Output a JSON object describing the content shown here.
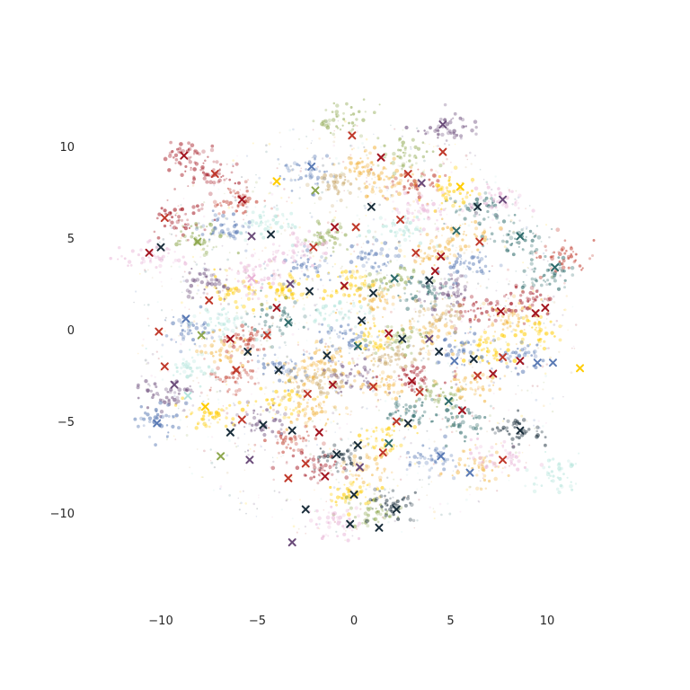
{
  "chart_data": {
    "type": "scatter",
    "title": "",
    "xlabel": "",
    "ylabel": "",
    "xlim": [
      -13,
      13
    ],
    "ylim": [
      -14,
      13
    ],
    "grid": false,
    "legend": "none",
    "x_ticks": [
      -10,
      -5,
      0,
      5,
      10
    ],
    "y_ticks": [
      10,
      5,
      0,
      -5,
      -10
    ],
    "x_tick_labels": [
      "−10",
      "−5",
      "0",
      "5",
      "10"
    ],
    "y_tick_labels": [
      "10",
      "5",
      "0",
      "−5",
      "−10"
    ],
    "palette": [
      "#a31621",
      "#c0392b",
      "#5b7bb5",
      "#ffcc00",
      "#f2b544",
      "#1a2e3b",
      "#2e6b6b",
      "#6b4c7a",
      "#8ea84f",
      "#e8b3d6",
      "#b5e5dc",
      "#c9a86b"
    ],
    "clusters": [
      {
        "x": -8.6,
        "y": 9.5,
        "color": 0
      },
      {
        "x": -7.2,
        "y": 8.5,
        "color": 0
      },
      {
        "x": -6.0,
        "y": 7.0,
        "color": 1
      },
      {
        "x": -9.0,
        "y": 6.0,
        "color": 0
      },
      {
        "x": -10.5,
        "y": 4.0,
        "color": 9
      },
      {
        "x": -8.0,
        "y": 5.0,
        "color": 8
      },
      {
        "x": -6.5,
        "y": 5.5,
        "color": 2
      },
      {
        "x": -5.8,
        "y": 2.0,
        "color": 3
      },
      {
        "x": -5.0,
        "y": 3.0,
        "color": 9
      },
      {
        "x": -7.5,
        "y": 2.5,
        "color": 7
      },
      {
        "x": -8.5,
        "y": 0.0,
        "color": 2
      },
      {
        "x": -6.5,
        "y": -1.0,
        "color": 4
      },
      {
        "x": -5.5,
        "y": -0.5,
        "color": 1
      },
      {
        "x": -4.0,
        "y": 0.5,
        "color": 6
      },
      {
        "x": -3.5,
        "y": 2.0,
        "color": 3
      },
      {
        "x": -2.5,
        "y": 3.5,
        "color": 2
      },
      {
        "x": -1.5,
        "y": 5.0,
        "color": 8
      },
      {
        "x": -2.5,
        "y": 8.5,
        "color": 2
      },
      {
        "x": -1.0,
        "y": 8.0,
        "color": 11
      },
      {
        "x": 0.5,
        "y": 9.0,
        "color": 4
      },
      {
        "x": 1.5,
        "y": 8.0,
        "color": 4
      },
      {
        "x": 2.5,
        "y": 9.5,
        "color": 8
      },
      {
        "x": 3.0,
        "y": 8.0,
        "color": 1
      },
      {
        "x": 5.0,
        "y": 7.5,
        "color": 3
      },
      {
        "x": 6.5,
        "y": 6.5,
        "color": 6
      },
      {
        "x": 7.5,
        "y": 7.0,
        "color": 9
      },
      {
        "x": 8.5,
        "y": 5.0,
        "color": 6
      },
      {
        "x": 5.5,
        "y": 5.0,
        "color": 4
      },
      {
        "x": 4.0,
        "y": 4.0,
        "color": 4
      },
      {
        "x": 2.5,
        "y": 5.5,
        "color": 10
      },
      {
        "x": 1.0,
        "y": 4.0,
        "color": 2
      },
      {
        "x": 0.0,
        "y": 2.5,
        "color": 3
      },
      {
        "x": 1.0,
        "y": 1.5,
        "color": 4
      },
      {
        "x": 2.0,
        "y": 2.5,
        "color": 8
      },
      {
        "x": 3.5,
        "y": 2.0,
        "color": 6
      },
      {
        "x": 5.0,
        "y": 2.0,
        "color": 7
      },
      {
        "x": 6.5,
        "y": 1.0,
        "color": 0
      },
      {
        "x": 8.0,
        "y": 0.5,
        "color": 4
      },
      {
        "x": 9.5,
        "y": 0.0,
        "color": 3
      },
      {
        "x": 9.0,
        "y": 1.5,
        "color": 0
      },
      {
        "x": 8.5,
        "y": -1.5,
        "color": 2
      },
      {
        "x": 7.0,
        "y": -1.0,
        "color": 3
      },
      {
        "x": 5.5,
        "y": -1.0,
        "color": 2
      },
      {
        "x": 4.0,
        "y": 0.0,
        "color": 4
      },
      {
        "x": 2.5,
        "y": -0.5,
        "color": 8
      },
      {
        "x": 1.0,
        "y": -0.5,
        "color": 3
      },
      {
        "x": -0.5,
        "y": -0.5,
        "color": 2
      },
      {
        "x": -1.5,
        "y": -1.5,
        "color": 4
      },
      {
        "x": -2.5,
        "y": -2.5,
        "color": 4
      },
      {
        "x": -4.0,
        "y": -2.0,
        "color": 2
      },
      {
        "x": -6.0,
        "y": -2.5,
        "color": 1
      },
      {
        "x": -8.5,
        "y": -2.0,
        "color": 10
      },
      {
        "x": -9.5,
        "y": -3.5,
        "color": 7
      },
      {
        "x": -10.0,
        "y": -5.0,
        "color": 2
      },
      {
        "x": -7.5,
        "y": -4.5,
        "color": 3
      },
      {
        "x": -5.0,
        "y": -5.0,
        "color": 7
      },
      {
        "x": -3.5,
        "y": -4.0,
        "color": 3
      },
      {
        "x": -2.0,
        "y": -4.5,
        "color": 4
      },
      {
        "x": -3.0,
        "y": -6.0,
        "color": 1
      },
      {
        "x": -2.0,
        "y": -7.5,
        "color": 0
      },
      {
        "x": -0.8,
        "y": -7.0,
        "color": 5
      },
      {
        "x": 0.5,
        "y": -7.5,
        "color": 4
      },
      {
        "x": 0.0,
        "y": -9.0,
        "color": 3
      },
      {
        "x": 1.0,
        "y": -10.0,
        "color": 8
      },
      {
        "x": 2.0,
        "y": -9.5,
        "color": 5
      },
      {
        "x": -1.0,
        "y": -10.5,
        "color": 9
      },
      {
        "x": 1.5,
        "y": -6.0,
        "color": 3
      },
      {
        "x": 3.0,
        "y": -4.5,
        "color": 6
      },
      {
        "x": 4.5,
        "y": -3.5,
        "color": 8
      },
      {
        "x": 5.5,
        "y": -5.0,
        "color": 6
      },
      {
        "x": 6.0,
        "y": -3.0,
        "color": 4
      },
      {
        "x": 3.0,
        "y": -2.5,
        "color": 0
      },
      {
        "x": 1.5,
        "y": -3.0,
        "color": 4
      },
      {
        "x": 0.0,
        "y": -2.5,
        "color": 7
      },
      {
        "x": 4.0,
        "y": -7.0,
        "color": 2
      },
      {
        "x": 6.5,
        "y": -7.5,
        "color": 4
      },
      {
        "x": 7.5,
        "y": -7.0,
        "color": 9
      },
      {
        "x": 10.5,
        "y": -8.0,
        "color": 10
      },
      {
        "x": 8.5,
        "y": -5.5,
        "color": 5
      },
      {
        "x": 10.0,
        "y": 3.0,
        "color": 6
      },
      {
        "x": 11.0,
        "y": 4.0,
        "color": 1
      },
      {
        "x": -0.5,
        "y": 11.5,
        "color": 8
      },
      {
        "x": 5.0,
        "y": 11.0,
        "color": 7
      },
      {
        "x": -3.0,
        "y": 4.5,
        "color": 9
      },
      {
        "x": -1.0,
        "y": 1.0,
        "color": 10
      },
      {
        "x": -4.5,
        "y": 6.0,
        "color": 10
      },
      {
        "x": 3.5,
        "y": 6.5,
        "color": 9
      },
      {
        "x": 6.0,
        "y": 3.5,
        "color": 2
      },
      {
        "x": -6.5,
        "y": 0.5,
        "color": 10
      },
      {
        "x": 2.0,
        "y": -1.5,
        "color": 11
      },
      {
        "x": -1.5,
        "y": -3.0,
        "color": 11
      },
      {
        "x": 4.5,
        "y": 1.0,
        "color": 11
      }
    ],
    "markers": [
      {
        "x": -8.8,
        "y": 9.5,
        "color": 0
      },
      {
        "x": -7.2,
        "y": 8.5,
        "color": 1
      },
      {
        "x": -5.8,
        "y": 7.1,
        "color": 0
      },
      {
        "x": -9.8,
        "y": 6.1,
        "color": 1
      },
      {
        "x": -10.6,
        "y": 4.2,
        "color": 0
      },
      {
        "x": -10.0,
        "y": 4.5,
        "color": 5
      },
      {
        "x": -8.1,
        "y": 4.8,
        "color": 8
      },
      {
        "x": -5.3,
        "y": 5.1,
        "color": 7
      },
      {
        "x": -4.3,
        "y": 5.2,
        "color": 5
      },
      {
        "x": -2.1,
        "y": 4.5,
        "color": 1
      },
      {
        "x": -1.0,
        "y": 5.6,
        "color": 0
      },
      {
        "x": 0.1,
        "y": 5.6,
        "color": 1
      },
      {
        "x": 0.9,
        "y": 6.7,
        "color": 5
      },
      {
        "x": 2.4,
        "y": 6.0,
        "color": 1
      },
      {
        "x": 2.8,
        "y": 8.5,
        "color": 1
      },
      {
        "x": 3.5,
        "y": 8.0,
        "color": 7
      },
      {
        "x": 1.4,
        "y": 9.4,
        "color": 0
      },
      {
        "x": 4.6,
        "y": 9.7,
        "color": 1
      },
      {
        "x": 4.6,
        "y": 11.2,
        "color": 7
      },
      {
        "x": -0.1,
        "y": 10.6,
        "color": 1
      },
      {
        "x": -2.2,
        "y": 8.9,
        "color": 2
      },
      {
        "x": -2.0,
        "y": 7.6,
        "color": 8
      },
      {
        "x": -4.0,
        "y": 8.1,
        "color": 3
      },
      {
        "x": 5.5,
        "y": 7.8,
        "color": 3
      },
      {
        "x": 6.4,
        "y": 6.7,
        "color": 5
      },
      {
        "x": 7.7,
        "y": 7.1,
        "color": 7
      },
      {
        "x": 8.6,
        "y": 5.1,
        "color": 6
      },
      {
        "x": 6.5,
        "y": 4.8,
        "color": 1
      },
      {
        "x": 5.3,
        "y": 5.4,
        "color": 6
      },
      {
        "x": 3.2,
        "y": 4.2,
        "color": 1
      },
      {
        "x": 4.5,
        "y": 4.0,
        "color": 0
      },
      {
        "x": 4.2,
        "y": 3.2,
        "color": 0
      },
      {
        "x": 3.9,
        "y": 2.7,
        "color": 5
      },
      {
        "x": 2.1,
        "y": 2.8,
        "color": 6
      },
      {
        "x": 1.0,
        "y": 2.0,
        "color": 5
      },
      {
        "x": -0.5,
        "y": 2.4,
        "color": 0
      },
      {
        "x": -2.3,
        "y": 2.1,
        "color": 5
      },
      {
        "x": -3.3,
        "y": 2.5,
        "color": 7
      },
      {
        "x": -5.3,
        "y": 2.8,
        "color": 9
      },
      {
        "x": -7.5,
        "y": 1.6,
        "color": 1
      },
      {
        "x": -8.7,
        "y": 0.6,
        "color": 2
      },
      {
        "x": -10.1,
        "y": -0.1,
        "color": 1
      },
      {
        "x": -7.9,
        "y": -0.3,
        "color": 8
      },
      {
        "x": -6.4,
        "y": -0.5,
        "color": 0
      },
      {
        "x": -5.5,
        "y": -1.2,
        "color": 5
      },
      {
        "x": -4.5,
        "y": -0.3,
        "color": 1
      },
      {
        "x": -3.4,
        "y": 0.4,
        "color": 6
      },
      {
        "x": -1.4,
        "y": -1.4,
        "color": 5
      },
      {
        "x": 0.4,
        "y": 0.5,
        "color": 5
      },
      {
        "x": 0.2,
        "y": -0.9,
        "color": 6
      },
      {
        "x": 1.8,
        "y": -0.2,
        "color": 0
      },
      {
        "x": 2.5,
        "y": -0.5,
        "color": 5
      },
      {
        "x": 3.9,
        "y": -0.5,
        "color": 7
      },
      {
        "x": 4.4,
        "y": -1.2,
        "color": 5
      },
      {
        "x": 5.2,
        "y": -1.7,
        "color": 2
      },
      {
        "x": 6.2,
        "y": -1.6,
        "color": 5
      },
      {
        "x": 7.7,
        "y": -1.5,
        "color": 1
      },
      {
        "x": 8.6,
        "y": -1.7,
        "color": 0
      },
      {
        "x": 9.5,
        "y": -1.8,
        "color": 2
      },
      {
        "x": 10.3,
        "y": -1.8,
        "color": 2
      },
      {
        "x": 9.4,
        "y": 0.9,
        "color": 0
      },
      {
        "x": 9.9,
        "y": 1.2,
        "color": 0
      },
      {
        "x": 7.6,
        "y": 1.0,
        "color": 0
      },
      {
        "x": 11.7,
        "y": -2.1,
        "color": 3
      },
      {
        "x": 10.4,
        "y": 3.4,
        "color": 6
      },
      {
        "x": -9.8,
        "y": -2.0,
        "color": 1
      },
      {
        "x": -9.3,
        "y": -3.0,
        "color": 7
      },
      {
        "x": -8.6,
        "y": -3.6,
        "color": 10
      },
      {
        "x": -10.2,
        "y": -5.1,
        "color": 2
      },
      {
        "x": -7.7,
        "y": -4.2,
        "color": 3
      },
      {
        "x": -6.1,
        "y": -2.2,
        "color": 1
      },
      {
        "x": -5.8,
        "y": -4.9,
        "color": 1
      },
      {
        "x": -6.4,
        "y": -5.6,
        "color": 5
      },
      {
        "x": -4.7,
        "y": -5.2,
        "color": 5
      },
      {
        "x": -3.2,
        "y": -5.5,
        "color": 5
      },
      {
        "x": -2.4,
        "y": -3.5,
        "color": 1
      },
      {
        "x": -1.8,
        "y": -5.6,
        "color": 0
      },
      {
        "x": -2.5,
        "y": -7.3,
        "color": 1
      },
      {
        "x": -3.4,
        "y": -8.1,
        "color": 1
      },
      {
        "x": -1.5,
        "y": -8.0,
        "color": 0
      },
      {
        "x": -0.9,
        "y": -6.8,
        "color": 5
      },
      {
        "x": 0.2,
        "y": -6.3,
        "color": 5
      },
      {
        "x": 1.8,
        "y": -6.2,
        "color": 6
      },
      {
        "x": 0.3,
        "y": -7.5,
        "color": 7
      },
      {
        "x": 1.5,
        "y": -6.7,
        "color": 1
      },
      {
        "x": 0.0,
        "y": -9.0,
        "color": 5
      },
      {
        "x": -2.5,
        "y": -9.8,
        "color": 5
      },
      {
        "x": -0.2,
        "y": -10.6,
        "color": 5
      },
      {
        "x": 1.3,
        "y": -10.8,
        "color": 5
      },
      {
        "x": 2.2,
        "y": -9.8,
        "color": 5
      },
      {
        "x": -3.2,
        "y": -11.6,
        "color": 7
      },
      {
        "x": 2.2,
        "y": -5.0,
        "color": 1
      },
      {
        "x": 2.8,
        "y": -5.1,
        "color": 5
      },
      {
        "x": 3.4,
        "y": -3.4,
        "color": 1
      },
      {
        "x": 3.0,
        "y": -2.8,
        "color": 0
      },
      {
        "x": 4.9,
        "y": -3.9,
        "color": 6
      },
      {
        "x": 5.6,
        "y": -4.4,
        "color": 0
      },
      {
        "x": 6.4,
        "y": -2.5,
        "color": 1
      },
      {
        "x": 7.2,
        "y": -2.4,
        "color": 0
      },
      {
        "x": 8.6,
        "y": -5.5,
        "color": 5
      },
      {
        "x": 6.0,
        "y": -7.8,
        "color": 2
      },
      {
        "x": 7.7,
        "y": -7.1,
        "color": 1
      },
      {
        "x": 4.5,
        "y": -6.9,
        "color": 2
      },
      {
        "x": -3.9,
        "y": -2.2,
        "color": 5
      },
      {
        "x": -1.1,
        "y": -3.0,
        "color": 0
      },
      {
        "x": 1.0,
        "y": -3.1,
        "color": 1
      },
      {
        "x": -6.9,
        "y": -6.9,
        "color": 8
      },
      {
        "x": -5.4,
        "y": -7.1,
        "color": 7
      },
      {
        "x": -4.0,
        "y": 1.2,
        "color": 0
      }
    ]
  }
}
